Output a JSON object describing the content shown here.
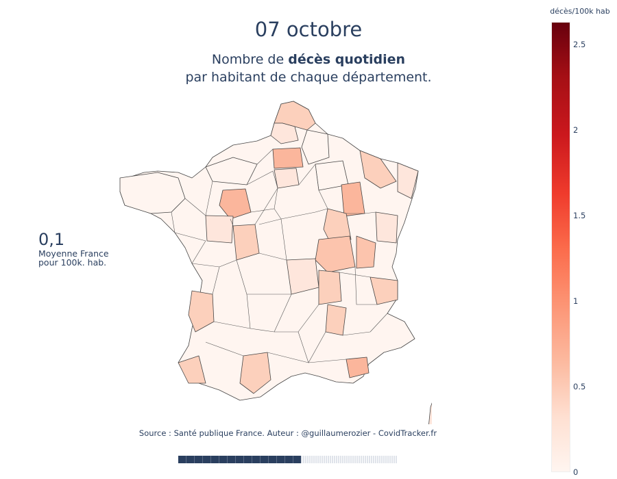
{
  "title": "07 octobre",
  "subtitle": {
    "prefix": "Nombre de ",
    "bold": "décès quotidien",
    "line2": "par habitant de chaque département."
  },
  "average": {
    "value": "0,1",
    "label1": "Moyenne France",
    "label2": "pour 100k. hab."
  },
  "source": "Source : Santé publique France. Auteur : @guillaumerozier - CovidTracker.fr",
  "colorbar": {
    "title": "décès/100k hab",
    "ticks": [
      "2.5",
      "2",
      "1.5",
      "1",
      "0.5",
      "0"
    ],
    "range": [
      0,
      2.6
    ],
    "colorscale": [
      "#fff5f0",
      "#fee0d2",
      "#fcbba1",
      "#fc9272",
      "#fb6a4a",
      "#ef3b2c",
      "#cb181d",
      "#a50f15",
      "#67000d"
    ]
  },
  "map_colors": {
    "lowest": "#fff5f0",
    "low": "#fee6dc",
    "medium": "#fcd0bc",
    "high": "#fbb69c",
    "border": "#444444"
  },
  "slider": {
    "progress": 0.56
  }
}
